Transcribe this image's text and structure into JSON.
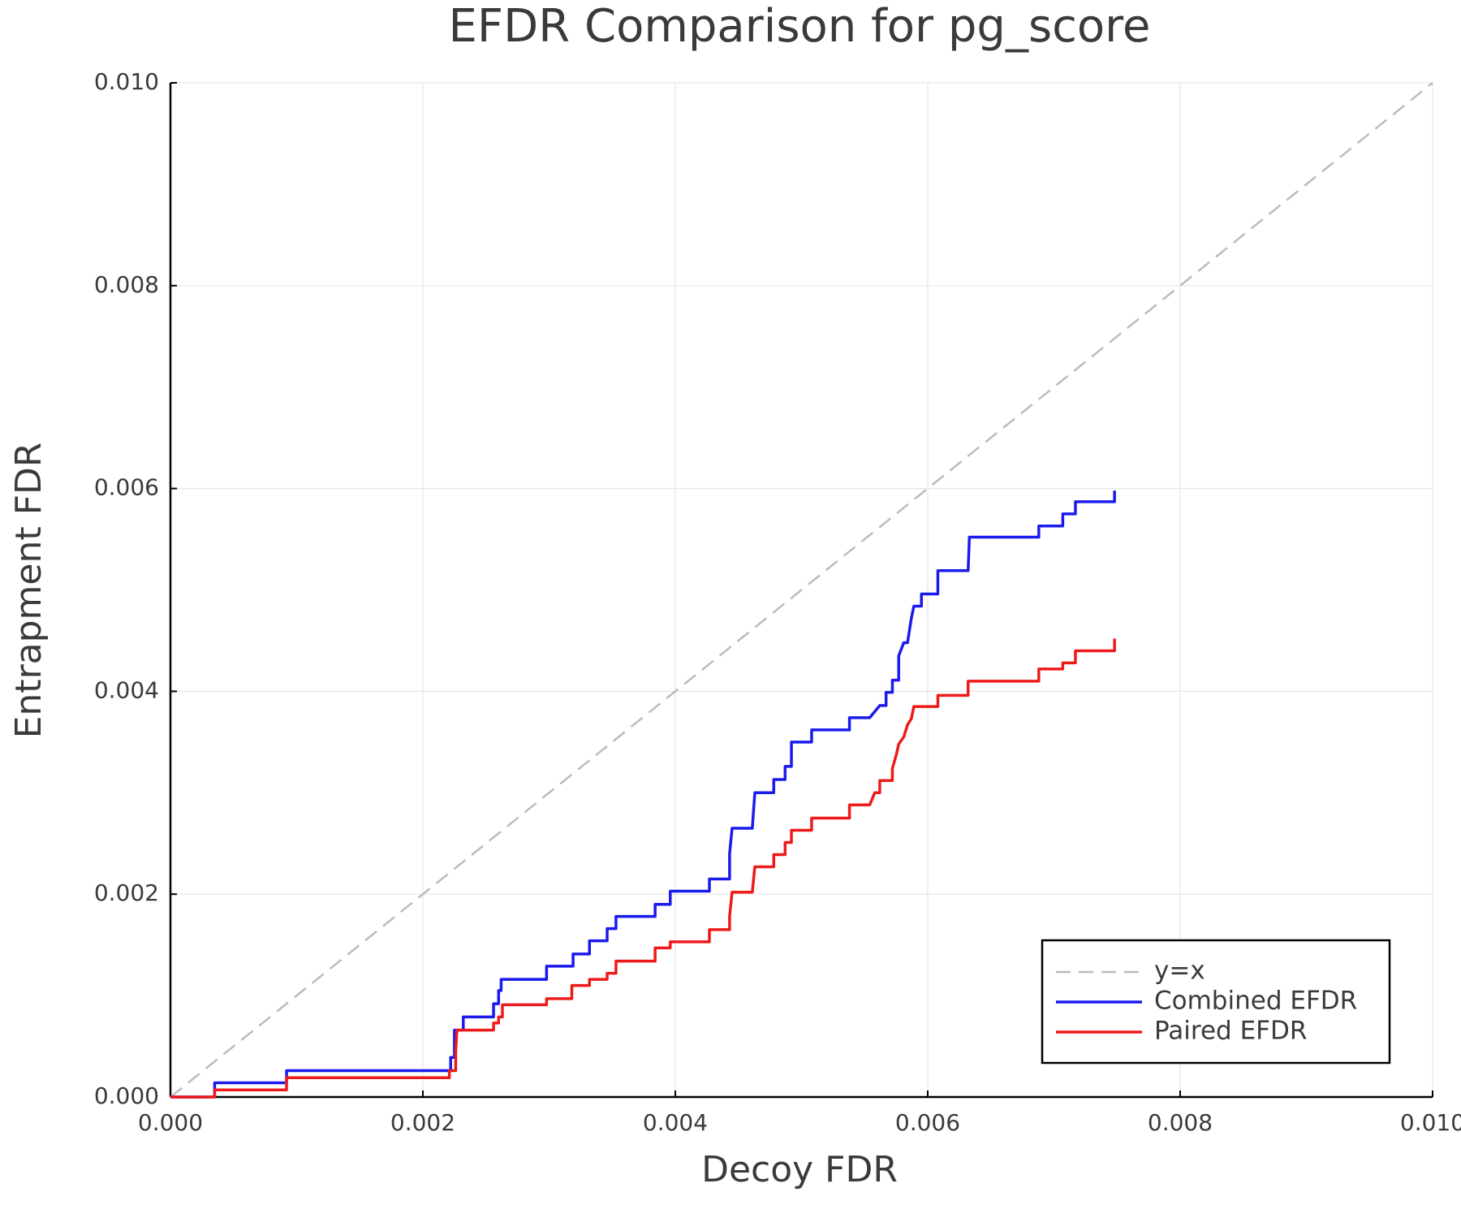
{
  "chart_data": {
    "type": "line",
    "title": "EFDR Comparison for pg_score",
    "xlabel": "Decoy FDR",
    "ylabel": "Entrapment FDR",
    "xlim": [
      0,
      0.01
    ],
    "ylim": [
      0,
      0.01
    ],
    "xticks": [
      {
        "value": 0,
        "label": "0.000"
      },
      0.002,
      0.004,
      0.006,
      0.008,
      {
        "value": 0.01,
        "label": "0.010"
      }
    ],
    "yticks": [
      {
        "value": 0,
        "label": "0.000"
      },
      0.002,
      0.004,
      0.006,
      0.008,
      {
        "value": 0.01,
        "label": "0.010"
      }
    ],
    "grid": true,
    "legend": "bottom-right",
    "series": [
      {
        "name": "y=x",
        "color": "#bbbbbb",
        "dashed": true,
        "x": [
          0,
          0.01
        ],
        "values": [
          0,
          0.01
        ]
      },
      {
        "name": "Combined EFDR",
        "color": "#1a1aee",
        "dashed": false,
        "x": [
          0,
          0.00035,
          0.00035,
          0.00092,
          0.00092,
          0.00222,
          0.00222,
          0.00225,
          0.00225,
          0.00232,
          0.00232,
          0.00256,
          0.00256,
          0.0026,
          0.0026,
          0.00262,
          0.00262,
          0.00298,
          0.00298,
          0.00319,
          0.00319,
          0.00332,
          0.00332,
          0.00346,
          0.00346,
          0.00353,
          0.00353,
          0.00384,
          0.00384,
          0.00396,
          0.00396,
          0.00427,
          0.00427,
          0.00443,
          0.00443,
          0.00445,
          0.00461,
          0.00463,
          0.00478,
          0.00478,
          0.00487,
          0.00487,
          0.00492,
          0.00492,
          0.00508,
          0.00508,
          0.00538,
          0.00538,
          0.00554,
          0.00562,
          0.00567,
          0.00567,
          0.00572,
          0.00572,
          0.00577,
          0.00577,
          0.00581,
          0.00584,
          0.00587,
          0.00589,
          0.00595,
          0.00595,
          0.00608,
          0.00608,
          0.00632,
          0.00633,
          0.00688,
          0.00688,
          0.00707,
          0.00707,
          0.00717,
          0.00717,
          0.00748,
          0.00748
        ],
        "values": [
          0,
          0,
          0.00014,
          0.00014,
          0.00026,
          0.00026,
          0.00039,
          0.00039,
          0.00066,
          0.00066,
          0.00079,
          0.00079,
          0.00092,
          0.00092,
          0.00105,
          0.00105,
          0.00116,
          0.00116,
          0.00129,
          0.00129,
          0.00141,
          0.00141,
          0.00154,
          0.00154,
          0.00166,
          0.00166,
          0.00178,
          0.00178,
          0.0019,
          0.0019,
          0.00203,
          0.00203,
          0.00215,
          0.00215,
          0.0024,
          0.00265,
          0.00265,
          0.003,
          0.003,
          0.00313,
          0.00313,
          0.00326,
          0.00326,
          0.0035,
          0.0035,
          0.00362,
          0.00362,
          0.00374,
          0.00374,
          0.00386,
          0.00386,
          0.00399,
          0.00399,
          0.00411,
          0.00411,
          0.00435,
          0.00448,
          0.00448,
          0.00472,
          0.00484,
          0.00484,
          0.00496,
          0.00496,
          0.00519,
          0.00519,
          0.00552,
          0.00552,
          0.00563,
          0.00563,
          0.00575,
          0.00575,
          0.00587,
          0.00587,
          0.00598
        ]
      },
      {
        "name": "Paired EFDR",
        "color": "#ee1a1a",
        "dashed": false,
        "x": [
          0,
          0.00035,
          0.00035,
          0.00092,
          0.00092,
          0.00221,
          0.00221,
          0.00226,
          0.00226,
          0.00227,
          0.00256,
          0.00256,
          0.0026,
          0.0026,
          0.00263,
          0.00263,
          0.00298,
          0.00298,
          0.00318,
          0.00318,
          0.00332,
          0.00332,
          0.00346,
          0.00346,
          0.00353,
          0.00353,
          0.00384,
          0.00384,
          0.00396,
          0.00396,
          0.00427,
          0.00427,
          0.00443,
          0.00443,
          0.00445,
          0.00461,
          0.00463,
          0.00478,
          0.00478,
          0.00487,
          0.00487,
          0.00492,
          0.00492,
          0.00508,
          0.00508,
          0.00538,
          0.00538,
          0.00554,
          0.00558,
          0.00562,
          0.00562,
          0.00572,
          0.00572,
          0.00575,
          0.00577,
          0.00581,
          0.00584,
          0.00587,
          0.00589,
          0.00608,
          0.00608,
          0.00632,
          0.00632,
          0.00688,
          0.00688,
          0.00707,
          0.00707,
          0.00717,
          0.00717,
          0.00748,
          0.00748
        ],
        "values": [
          0,
          0,
          7e-05,
          7e-05,
          0.00019,
          0.00019,
          0.00026,
          0.00026,
          0.00045,
          0.00066,
          0.00066,
          0.00073,
          0.00073,
          0.00079,
          0.00079,
          0.00091,
          0.00091,
          0.00097,
          0.00097,
          0.0011,
          0.0011,
          0.00116,
          0.00116,
          0.00122,
          0.00122,
          0.00134,
          0.00134,
          0.00147,
          0.00147,
          0.00153,
          0.00153,
          0.00165,
          0.00165,
          0.00178,
          0.00202,
          0.00202,
          0.00227,
          0.00227,
          0.00239,
          0.00239,
          0.00251,
          0.00251,
          0.00263,
          0.00263,
          0.00275,
          0.00275,
          0.00288,
          0.00288,
          0.003,
          0.003,
          0.00312,
          0.00312,
          0.00324,
          0.00337,
          0.00348,
          0.00355,
          0.00367,
          0.00373,
          0.00385,
          0.00385,
          0.00396,
          0.00396,
          0.0041,
          0.0041,
          0.00422,
          0.00422,
          0.00428,
          0.00428,
          0.0044,
          0.0044,
          0.00452
        ]
      }
    ]
  }
}
